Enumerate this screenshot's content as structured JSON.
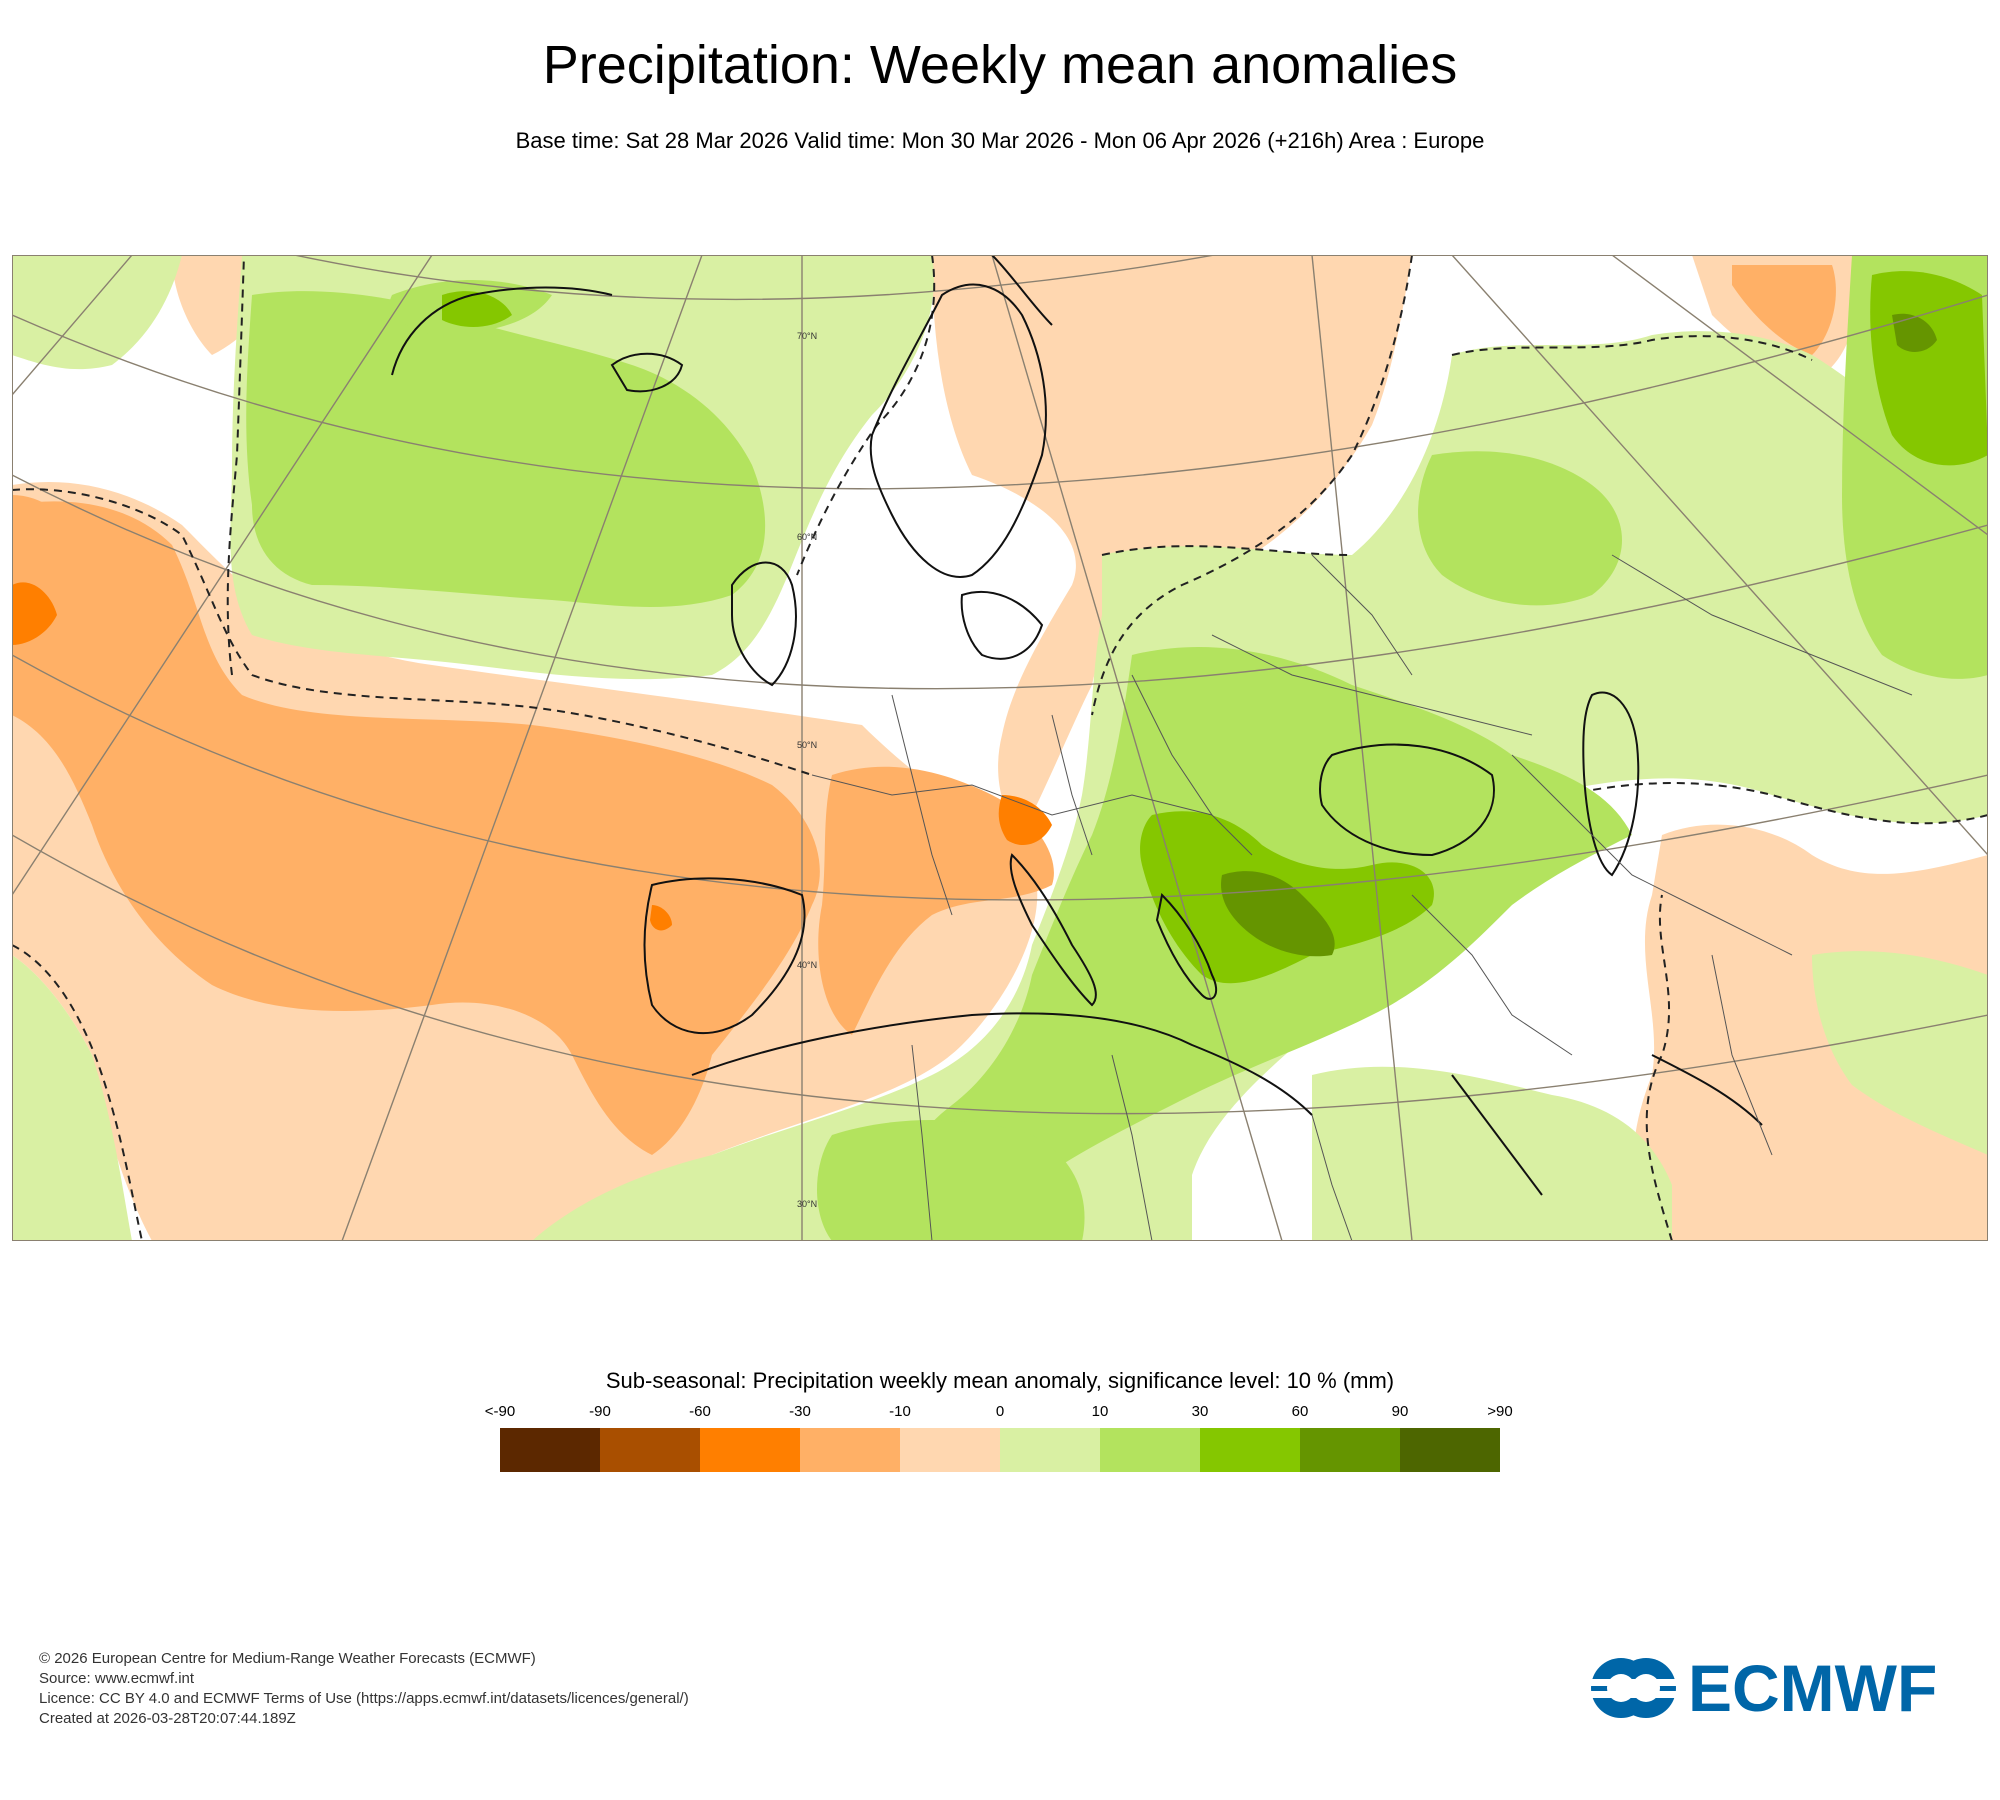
{
  "header": {
    "title": "Precipitation: Weekly mean anomalies",
    "subtitle": "Base time: Sat 28 Mar 2026 Valid time: Mon 30 Mar 2026 - Mon 06 Apr 2026 (+216h) Area : Europe"
  },
  "map": {
    "area": "Europe",
    "latitude_labels": [
      "70°N",
      "60°N",
      "50°N",
      "40°N",
      "30°N"
    ],
    "colors": {
      "sea": "#ffffff",
      "neutral": "#ffffff",
      "coast": "#111111",
      "border": "#555555",
      "grid": "#8a8070"
    }
  },
  "legend": {
    "title": "Sub-seasonal: Precipitation weekly mean anomaly, significance level: 10 % (mm)",
    "labels": [
      "<-90",
      "-90",
      "-60",
      "-30",
      "-10",
      "0",
      "10",
      "30",
      "60",
      "90",
      ">90"
    ],
    "colors": [
      "#5c2800",
      "#a94f00",
      "#ff7f00",
      "#ffb066",
      "#ffd7b0",
      "#d9f0a3",
      "#b3e35e",
      "#85c700",
      "#659500",
      "#4d6600"
    ]
  },
  "footer": {
    "line1": "© 2026 European Centre for Medium-Range Weather Forecasts (ECMWF)",
    "line2": "Source: www.ecmwf.int",
    "line3": "Licence: CC BY 4.0 and ECMWF Terms of Use (https://apps.ecmwf.int/datasets/licences/general/)",
    "line4": "Created at 2026-03-28T20:07:44.189Z"
  },
  "logo": {
    "text": "ECMWF",
    "color": "#0066a8"
  }
}
